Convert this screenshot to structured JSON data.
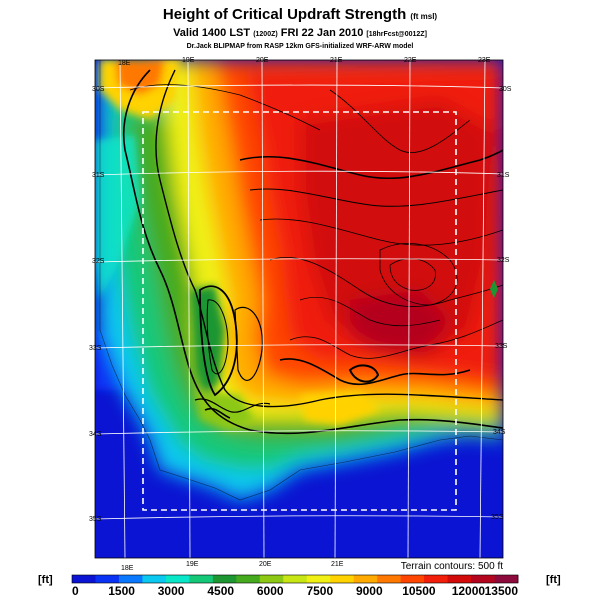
{
  "header": {
    "title": "Height of Critical Updraft Strength",
    "title_unit": "(ft msl)",
    "valid_main": "Valid 1400 LST",
    "valid_utc": "(1200Z)",
    "valid_date": "FRI 22 Jan 2010",
    "valid_fcst": "[18hrFcst@0012Z]",
    "credit": "Dr.Jack BLIPMAP from RASP 12km GFS-initialized WRF-ARW model"
  },
  "map": {
    "lon_top_labels": [
      "18E",
      "19E",
      "20E",
      "21E",
      "22E",
      "23E"
    ],
    "lon_bottom_labels": [
      "18E",
      "19E",
      "20E",
      "21E"
    ],
    "lat_left_labels": [
      "30S",
      "31S",
      "32S",
      "33S",
      "34S",
      "35S"
    ],
    "lat_right_labels": [
      "30S",
      "31S",
      "32S",
      "33S",
      "34S",
      "35S"
    ],
    "terrain_note": "Terrain contours: 500 ft"
  },
  "colorbar": {
    "unit_left": "[ft]",
    "unit_right": "[ft]",
    "tick_labels": [
      "0",
      "1500",
      "3000",
      "4500",
      "6000",
      "7500",
      "9000",
      "10500",
      "12000",
      "13500"
    ],
    "colors": [
      "#0a14d2",
      "#0a32f5",
      "#0a78ff",
      "#0ac8f0",
      "#0ae6c8",
      "#14c878",
      "#1e9632",
      "#46aa1e",
      "#8cc814",
      "#c8e614",
      "#f0f014",
      "#ffd200",
      "#ffaa00",
      "#ff7800",
      "#ff4600",
      "#f01e0a",
      "#d20a0a",
      "#b4051e",
      "#8c0a3c"
    ]
  }
}
